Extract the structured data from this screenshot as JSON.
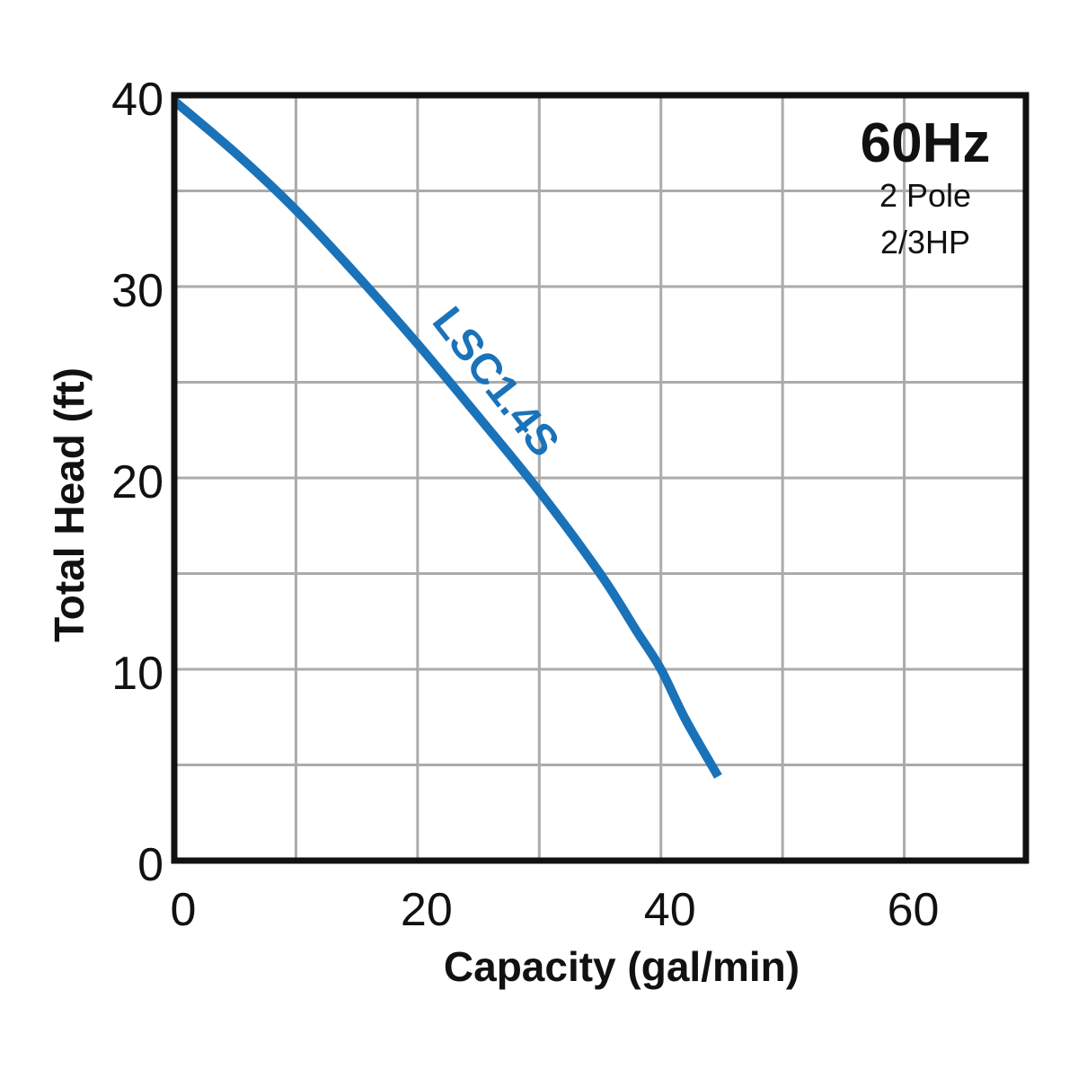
{
  "chart_data": {
    "type": "line",
    "title": "",
    "xlabel": "Capacity (gal/min)",
    "ylabel": "Total Head (ft)",
    "xlim": [
      0,
      70
    ],
    "ylim": [
      0,
      40
    ],
    "x_ticks": [
      0,
      20,
      40,
      60
    ],
    "y_ticks": [
      0,
      10,
      20,
      30,
      40
    ],
    "x_grid_step": 10,
    "y_grid_step": 5,
    "grid": true,
    "series": [
      {
        "name": "LSC1.4S",
        "color": "#1a72b9",
        "x": [
          0,
          5,
          10,
          15,
          20,
          25,
          30,
          35,
          38,
          40,
          42,
          44.7
        ],
        "y": [
          39.7,
          37,
          34,
          30.6,
          27,
          23.2,
          19.3,
          15,
          12,
          10,
          7.4,
          4.4
        ]
      }
    ],
    "annotation": {
      "heading": "60Hz",
      "lines": [
        "2 Pole",
        "2/3HP"
      ],
      "placement": "top-right"
    }
  }
}
